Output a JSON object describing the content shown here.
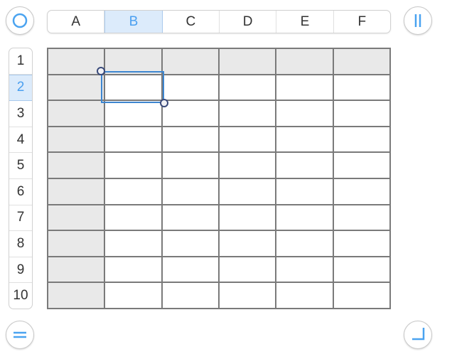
{
  "columns": [
    "A",
    "B",
    "C",
    "D",
    "E",
    "F"
  ],
  "selected_column": "B",
  "rows": [
    "1",
    "2",
    "3",
    "4",
    "5",
    "6",
    "7",
    "8",
    "9",
    "10"
  ],
  "selected_row": "2",
  "selected_cell": "B2",
  "header_rows": 1,
  "header_columns": 1,
  "buttons": {
    "top_left": "circle-icon",
    "top_right": "pause-bars-icon",
    "bottom_left": "equals-icon",
    "bottom_right": "corner-resize-icon"
  },
  "colors": {
    "accent": "#4aa3f0",
    "selection": "#3d86d0",
    "header_fill": "#e9e9e9",
    "grid": "#7a7a7a"
  }
}
